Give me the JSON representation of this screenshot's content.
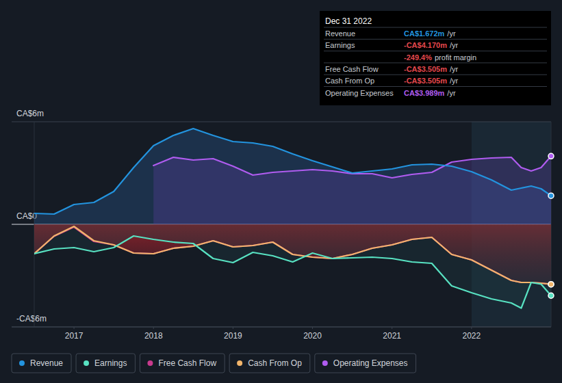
{
  "chart_data": {
    "type": "line",
    "x": [
      2016.5,
      2016.75,
      2017,
      2017.25,
      2017.5,
      2017.75,
      2018,
      2018.25,
      2018.5,
      2018.75,
      2019,
      2019.25,
      2019.5,
      2019.75,
      2020,
      2020.25,
      2020.5,
      2020.75,
      2021,
      2021.25,
      2021.5,
      2021.75,
      2022,
      2022.25,
      2022.5,
      2022.625,
      2022.75,
      2022.875,
      2023
    ],
    "xlim": [
      2016.5,
      2023
    ],
    "xticks": [
      2017,
      2018,
      2019,
      2020,
      2021,
      2022
    ],
    "ylim": [
      -6,
      6
    ],
    "yticks": [
      {
        "value": -6,
        "label": "-CA$6m"
      },
      {
        "value": 0,
        "label": "CA$0"
      },
      {
        "value": 6,
        "label": "CA$6m"
      }
    ],
    "grid": true,
    "legend": "bottom",
    "series": [
      {
        "name": "Revenue",
        "color": "#2394df",
        "values": [
          0.64,
          0.6,
          1.16,
          1.28,
          1.92,
          3.32,
          4.6,
          5.2,
          5.6,
          5.2,
          4.84,
          4.76,
          4.56,
          4.12,
          3.72,
          3.36,
          3.0,
          3.12,
          3.24,
          3.48,
          3.52,
          3.4,
          3.08,
          2.6,
          2.0,
          2.12,
          2.24,
          2.08,
          1.672
        ]
      },
      {
        "name": "Earnings",
        "color": "#58e2c2",
        "values": [
          -1.72,
          -1.44,
          -1.36,
          -1.6,
          -1.36,
          -0.68,
          -0.88,
          -1.04,
          -1.12,
          -2.0,
          -2.24,
          -1.64,
          -1.84,
          -2.2,
          -1.68,
          -2.0,
          -1.96,
          -1.92,
          -2.0,
          -2.2,
          -2.28,
          -3.6,
          -4.0,
          -4.36,
          -4.6,
          -4.9,
          -3.4,
          -3.5,
          -4.17
        ]
      },
      {
        "name": "Free Cash Flow",
        "color": "#c93a8e",
        "values": [
          -1.72,
          -0.7,
          -0.16,
          -1.0,
          -1.2,
          -1.68,
          -1.72,
          -1.4,
          -1.28,
          -0.96,
          -1.32,
          -1.24,
          -1.04,
          -1.76,
          -1.92,
          -2.0,
          -1.76,
          -1.4,
          -1.2,
          -0.88,
          -0.76,
          -1.76,
          -2.08,
          -2.68,
          -3.28,
          -3.4,
          -3.4,
          -3.44,
          -3.505
        ]
      },
      {
        "name": "Cash From Op",
        "color": "#f2b56b",
        "values": [
          -1.72,
          -0.68,
          -0.12,
          -0.96,
          -1.2,
          -1.68,
          -1.72,
          -1.4,
          -1.28,
          -0.96,
          -1.32,
          -1.24,
          -1.04,
          -1.76,
          -1.92,
          -2.0,
          -1.76,
          -1.4,
          -1.2,
          -0.88,
          -0.76,
          -1.76,
          -2.08,
          -2.68,
          -3.28,
          -3.4,
          -3.4,
          -3.44,
          -3.505
        ]
      },
      {
        "name": "Operating Expenses",
        "color": "#b05cf0",
        "values": [
          null,
          null,
          null,
          null,
          null,
          null,
          3.44,
          3.92,
          3.76,
          3.84,
          3.4,
          2.88,
          3.04,
          3.12,
          3.2,
          3.12,
          2.96,
          2.96,
          2.72,
          2.92,
          3.04,
          3.64,
          3.8,
          3.88,
          3.92,
          3.32,
          3.12,
          3.32,
          3.989
        ]
      }
    ],
    "annotations": {
      "title": "Dec 31 2022",
      "rows": [
        {
          "label": "Revenue",
          "value": "CA$1.672m",
          "suffix": "/yr",
          "color": "#2394df"
        },
        {
          "label": "Earnings",
          "value": "-CA$4.170m",
          "suffix": "/yr",
          "color": "#e5484d"
        },
        {
          "value": "-249.4%",
          "suffix": "profit margin",
          "color": "#e5484d"
        },
        {
          "label": "Free Cash Flow",
          "value": "-CA$3.505m",
          "suffix": "/yr",
          "color": "#e5484d"
        },
        {
          "label": "Cash From Op",
          "value": "-CA$3.505m",
          "suffix": "/yr",
          "color": "#e5484d"
        },
        {
          "label": "Operating Expenses",
          "value": "CA$3.989m",
          "suffix": "/yr",
          "color": "#b05cf0"
        }
      ]
    }
  }
}
